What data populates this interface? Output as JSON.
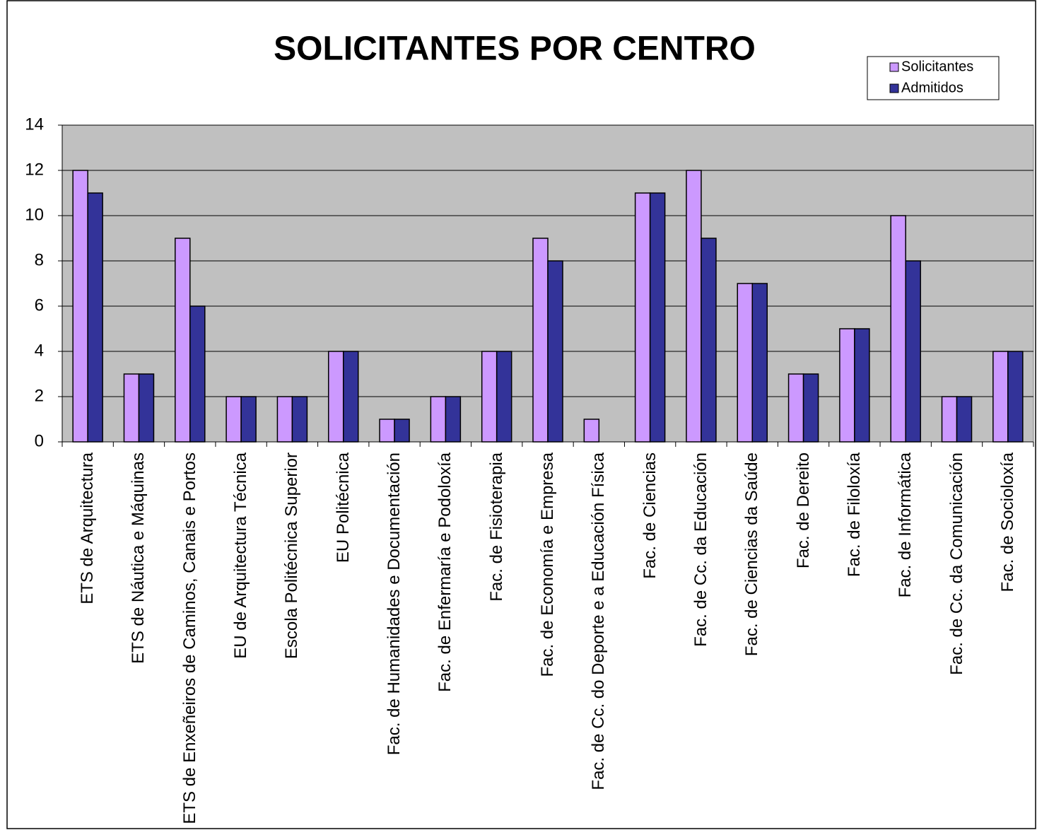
{
  "chart_data": {
    "type": "bar",
    "title": "SOLICITANTES POR CENTRO",
    "categories": [
      "ETS de Arquitectura",
      "ETS de Náutica e Máquinas",
      "ETS de Enxeñeiros de Caminos, Canais e Portos",
      "EU de Arquitectura Técnica",
      "Escola Politécnica Superior",
      "EU Politécnica",
      "Fac. de Humanidades e Documentación",
      "Fac. de Enfermaría e Podoloxía",
      "Fac. de Fisioterapia",
      "Fac. de Economía e Empresa",
      "Fac. de Cc. do Deporte e a Educación Física",
      "Fac. de Ciencias",
      "Fac. de Cc. da Educación",
      "Fac. de Ciencias da Saúde",
      "Fac. de  Dereito",
      "Fac. de Filoloxía",
      "Fac. de Informática",
      "Fac. de Cc. da Comunicación",
      "Fac. de Socioloxía"
    ],
    "series": [
      {
        "name": "Solicitantes",
        "color": "#cc99ff",
        "values": [
          12,
          3,
          9,
          2,
          2,
          4,
          1,
          2,
          4,
          9,
          1,
          11,
          12,
          7,
          3,
          5,
          10,
          2,
          4
        ]
      },
      {
        "name": "Admitidos",
        "color": "#333399",
        "values": [
          11,
          3,
          6,
          2,
          2,
          4,
          1,
          2,
          4,
          8,
          0,
          11,
          9,
          7,
          3,
          5,
          8,
          2,
          4
        ]
      }
    ],
    "ylim": [
      0,
      14
    ],
    "yticks": [
      0,
      2,
      4,
      6,
      8,
      10,
      12,
      14
    ],
    "grid": true,
    "legend": "top-right"
  }
}
